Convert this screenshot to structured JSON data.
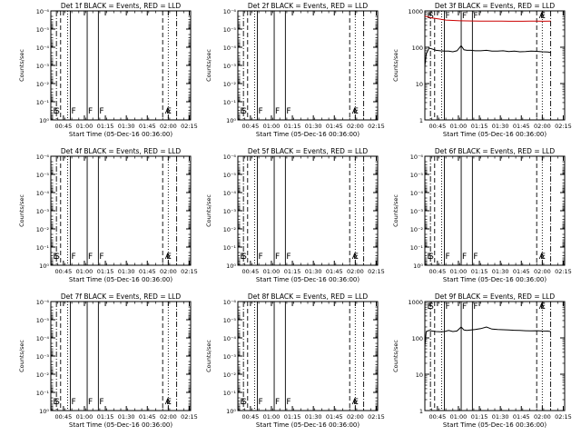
{
  "chart_data": {
    "type": "line",
    "x_ticks": [
      "00:45",
      "01:00",
      "01:15",
      "01:30",
      "01:45",
      "02:00",
      "02:15"
    ],
    "x_tick_minutes": [
      9,
      24,
      39,
      54,
      69,
      84,
      99
    ],
    "xlim_minutes": [
      0,
      100
    ],
    "xlabel": "Start Time (05-Dec-16 00:36:00)",
    "ylabel": "Counts/sec",
    "colors": {
      "events": "#000000",
      "lld": "#cc0000"
    },
    "markers": {
      "dash_dot": [
        4,
        90
      ],
      "dashed": [
        7,
        80
      ],
      "dotted": [
        12,
        84
      ],
      "solid": [
        14,
        26,
        34
      ],
      "labels": [
        {
          "text": "E",
          "x": 1
        },
        {
          "text": "S",
          "x": 2
        },
        {
          "text": "F",
          "x": 14
        },
        {
          "text": "F",
          "x": 26
        },
        {
          "text": "F",
          "x": 34
        },
        {
          "text": "A",
          "x": 81
        },
        {
          "text": "E",
          "x": 82
        }
      ]
    },
    "panels": [
      {
        "title": "Det 1f BLACK = Events, RED = LLD",
        "scale": "log",
        "ylim": [
          1,
          1e-06
        ],
        "y_ticks": [
          "10⁰",
          "10⁻¹",
          "10⁻²",
          "10⁻³",
          "10⁻⁴",
          "10⁻⁵",
          "10⁻⁶"
        ],
        "series": []
      },
      {
        "title": "Det 2f BLACK = Events, RED = LLD",
        "scale": "log",
        "ylim": [
          1,
          1e-06
        ],
        "y_ticks": [
          "10⁰",
          "10⁻¹",
          "10⁻²",
          "10⁻³",
          "10⁻⁴",
          "10⁻⁵",
          "10⁻⁶"
        ],
        "series": []
      },
      {
        "title": "Det 3f BLACK = Events, RED = LLD",
        "scale": "log",
        "ylim": [
          1,
          1000
        ],
        "y_ticks": [
          "1",
          "10",
          "100",
          "1000"
        ],
        "series": [
          {
            "color": "lld",
            "x": [
              0,
              5,
              10,
              15,
              20,
              25,
              30,
              35,
              40,
              45,
              50,
              55,
              60,
              65,
              70,
              75,
              80,
              85,
              90
            ],
            "y": [
              720,
              640,
              600,
              560,
              545,
              535,
              530,
              528,
              525,
              525,
              522,
              522,
              520,
              520,
              520,
              521,
              521,
              520,
              525
            ]
          },
          {
            "color": "events",
            "x": [
              0,
              1,
              3,
              5,
              8,
              11,
              14,
              17,
              20,
              23,
              26,
              28,
              30,
              33,
              36,
              40,
              44,
              48,
              52,
              56,
              60,
              64,
              68,
              72,
              76,
              80,
              84,
              88,
              90
            ],
            "y": [
              30,
              65,
              95,
              90,
              82,
              80,
              78,
              78,
              75,
              80,
              110,
              85,
              82,
              82,
              80,
              80,
              82,
              78,
              78,
              80,
              76,
              78,
              75,
              76,
              78,
              77,
              75,
              74,
              72
            ]
          }
        ]
      },
      {
        "title": "Det 4f BLACK = Events, RED = LLD",
        "scale": "log",
        "ylim": [
          1,
          1e-06
        ],
        "y_ticks": [
          "10⁰",
          "10⁻¹",
          "10⁻²",
          "10⁻³",
          "10⁻⁴",
          "10⁻⁵",
          "10⁻⁶"
        ],
        "series": []
      },
      {
        "title": "Det 5f BLACK = Events, RED = LLD",
        "scale": "log",
        "ylim": [
          1,
          1e-06
        ],
        "y_ticks": [
          "10⁰",
          "10⁻¹",
          "10⁻²",
          "10⁻³",
          "10⁻⁴",
          "10⁻⁵",
          "10⁻⁶"
        ],
        "series": []
      },
      {
        "title": "Det 6f BLACK = Events, RED = LLD",
        "scale": "log",
        "ylim": [
          1,
          1e-06
        ],
        "y_ticks": [
          "10⁰",
          "10⁻¹",
          "10⁻²",
          "10⁻³",
          "10⁻⁴",
          "10⁻⁵",
          "10⁻⁶"
        ],
        "series": []
      },
      {
        "title": "Det 7f BLACK = Events, RED = LLD",
        "scale": "log",
        "ylim": [
          1,
          1e-06
        ],
        "y_ticks": [
          "10⁰",
          "10⁻¹",
          "10⁻²",
          "10⁻³",
          "10⁻⁴",
          "10⁻⁵",
          "10⁻⁶"
        ],
        "series": []
      },
      {
        "title": "Det 8f BLACK = Events, RED = LLD",
        "scale": "log",
        "ylim": [
          1,
          1e-06
        ],
        "y_ticks": [
          "10⁰",
          "10⁻¹",
          "10⁻²",
          "10⁻³",
          "10⁻⁴",
          "10⁻⁵",
          "10⁻⁶"
        ],
        "series": []
      },
      {
        "title": "Det 9f BLACK = Events, RED = LLD",
        "scale": "log",
        "ylim": [
          1,
          1000
        ],
        "y_ticks": [
          "1",
          "10",
          "100",
          "1000"
        ],
        "series": [
          {
            "color": "events",
            "x": [
              0,
              1,
              3,
              5,
              8,
              11,
              14,
              17,
              20,
              23,
              26,
              28,
              30,
              33,
              36,
              40,
              44,
              48,
              52,
              56,
              60,
              64,
              68,
              72,
              76,
              80,
              84,
              88,
              90
            ],
            "y": [
              60,
              150,
              160,
              155,
              150,
              148,
              150,
              160,
              150,
              155,
              200,
              165,
              160,
              165,
              170,
              180,
              200,
              175,
              170,
              168,
              165,
              162,
              160,
              158,
              156,
              158,
              155,
              154,
              150
            ]
          }
        ]
      }
    ]
  }
}
